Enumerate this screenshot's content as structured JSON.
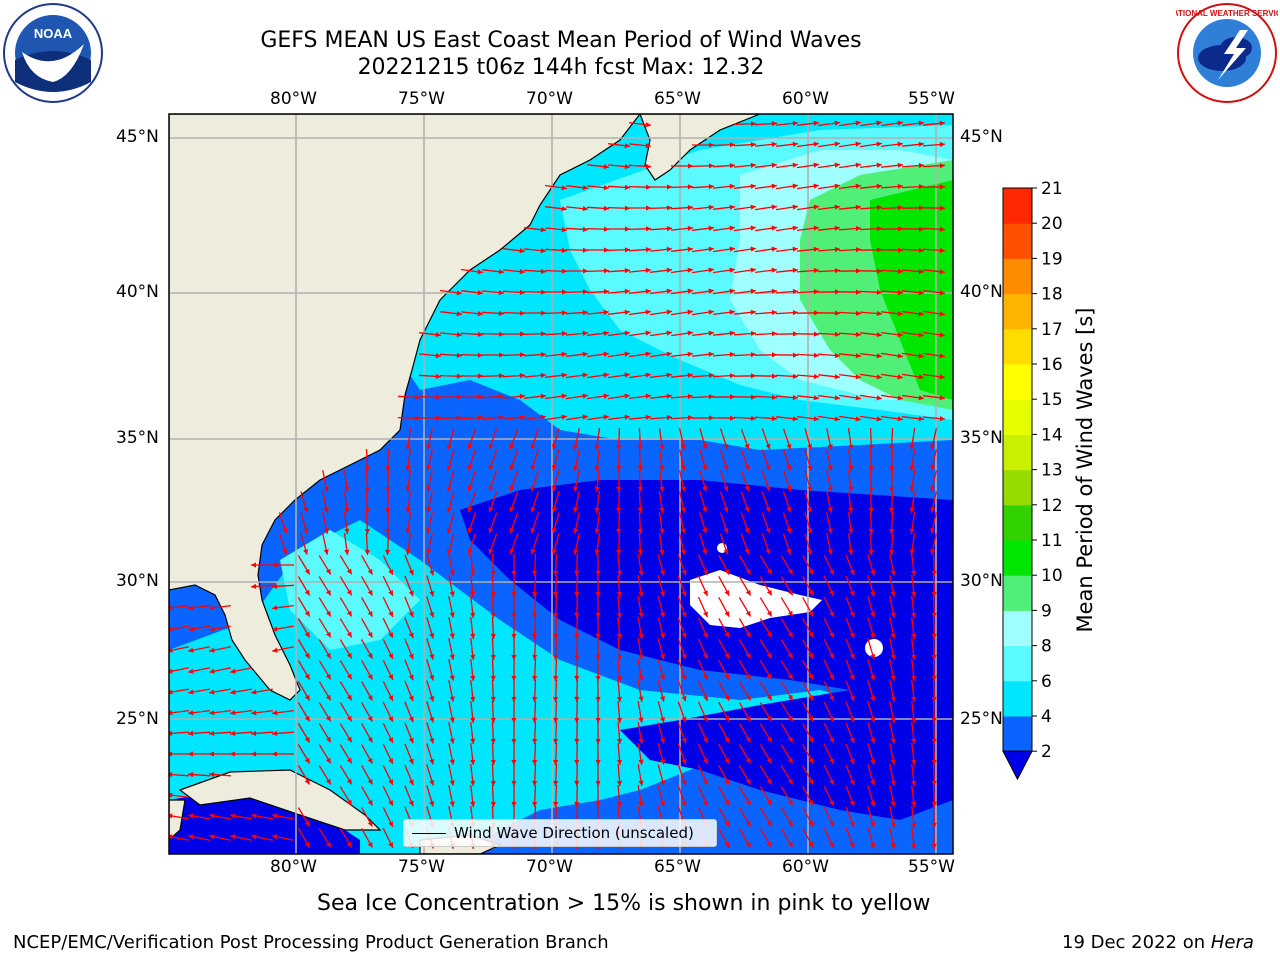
{
  "title": {
    "line1": "GEFS MEAN US East Coast Mean Period of Wind Waves",
    "line2": "20221215 t06z 144h fcst   Max: 12.32"
  },
  "logos": {
    "left": "NOAA",
    "right": "NATIONAL WEATHER SERVICE"
  },
  "axes": {
    "lon_ticks": [
      "80°W",
      "75°W",
      "70°W",
      "65°W",
      "60°W",
      "55°W"
    ],
    "lat_ticks": [
      "45°N",
      "40°N",
      "35°N",
      "30°N",
      "25°N"
    ]
  },
  "legend": {
    "label": "Wind Wave Direction (unscaled)"
  },
  "colorbar": {
    "label": "Mean Period of Wind Waves [s]",
    "levels": [
      "2",
      "4",
      "6",
      "8",
      "9",
      "10",
      "11",
      "12",
      "13",
      "14",
      "15",
      "16",
      "17",
      "18",
      "19",
      "20",
      "21"
    ],
    "colors": [
      "#0a64ff",
      "#00e6ff",
      "#5afaff",
      "#a0ffff",
      "#50f078",
      "#00e600",
      "#32d200",
      "#96dc00",
      "#c8f000",
      "#e6ff00",
      "#ffff00",
      "#ffdc00",
      "#ffb400",
      "#ff8c00",
      "#ff5000",
      "#ff2800",
      "#ff0000"
    ],
    "under_color": "#0000e6"
  },
  "map": {
    "land_color": "#eeecdc",
    "arrow_color": "#ff0000",
    "grid_color": "#b0b0b0"
  },
  "footer": {
    "note": "Sea Ice Concentration > 15% is shown in pink to yellow",
    "left": "NCEP/EMC/Verification Post Processing Product Generation Branch",
    "right_prefix": "19 Dec 2022 on ",
    "right_machine": "Hera"
  }
}
